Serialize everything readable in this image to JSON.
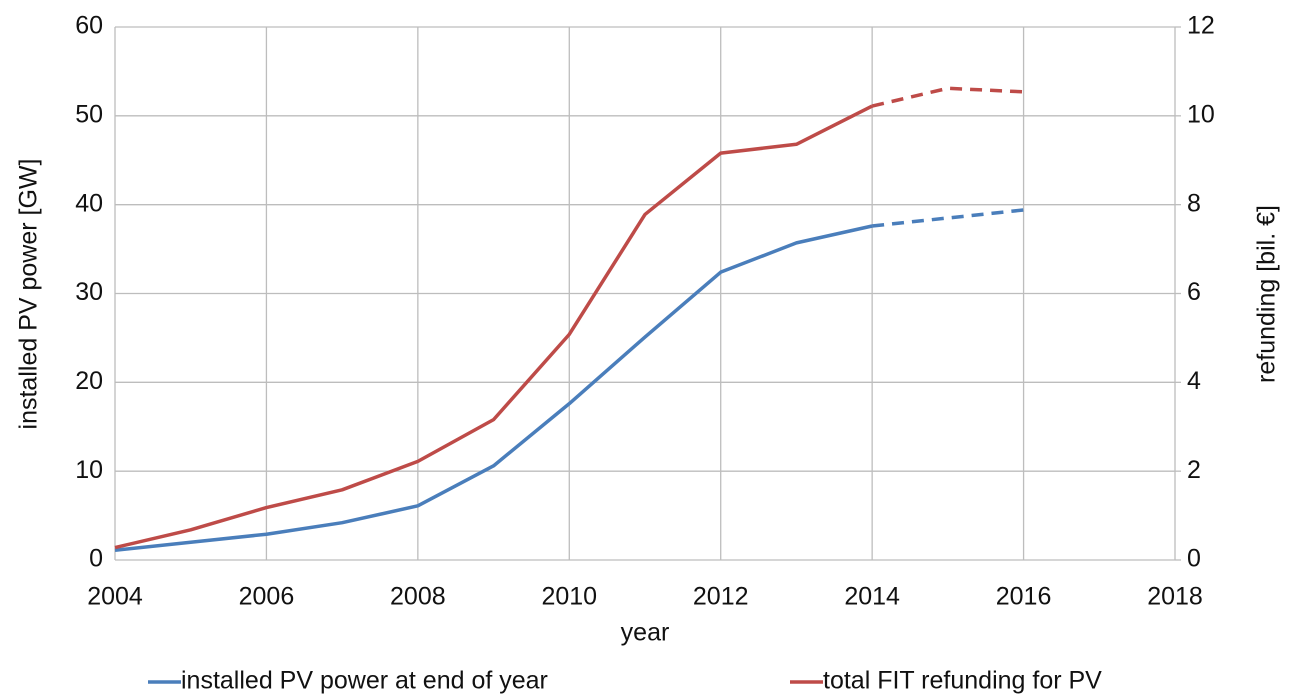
{
  "chart_data": {
    "type": "line",
    "x_label": "year",
    "y_label": "installed  PV power [GW]",
    "y2_label": "refunding [bil. €]",
    "x": [
      2004,
      2005,
      2006,
      2007,
      2008,
      2009,
      2010,
      2011,
      2012,
      2013,
      2014,
      2015,
      2016
    ],
    "xlim": [
      2004,
      2018
    ],
    "xticks": [
      2004,
      2006,
      2008,
      2010,
      2012,
      2014,
      2016,
      2018
    ],
    "ylim": [
      0,
      60
    ],
    "yticks": [
      0,
      10,
      20,
      30,
      40,
      50,
      60
    ],
    "y2lim": [
      0,
      12
    ],
    "y2ticks": [
      0,
      2,
      4,
      6,
      8,
      10,
      12
    ],
    "grid": true,
    "legend": "bottom",
    "dashed_from_x": 2014,
    "series": [
      {
        "name": "installed PV power at end of year",
        "color": "#4a7ebb",
        "values": [
          1.1,
          2.0,
          2.9,
          4.2,
          6.1,
          10.6,
          17.6,
          25.1,
          32.4,
          35.7,
          37.6,
          38.5,
          39.4
        ]
      },
      {
        "name": "total FIT refunding for PV",
        "color": "#be4b48",
        "axis": "y2",
        "values": [
          0.28,
          0.68,
          1.18,
          1.58,
          2.22,
          3.16,
          5.08,
          7.78,
          9.16,
          9.36,
          10.22,
          10.62,
          10.54
        ]
      }
    ]
  }
}
